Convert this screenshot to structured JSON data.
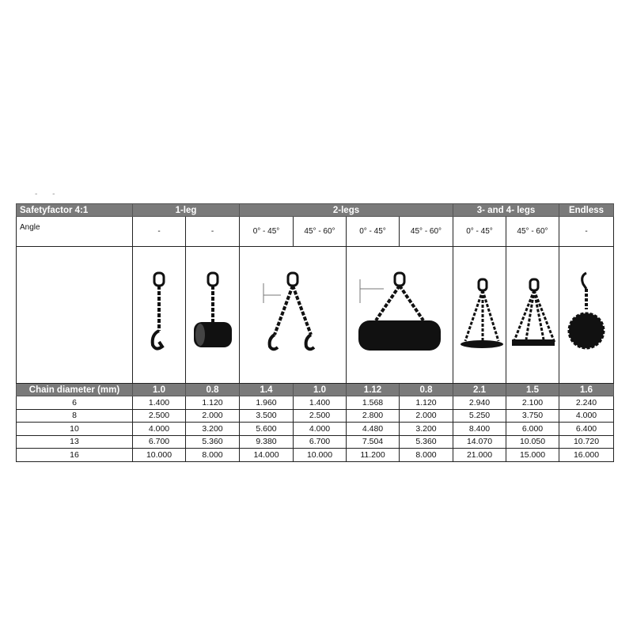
{
  "header": {
    "title": "Safetyfactor 4:1",
    "groups": [
      "1-leg",
      "2-legs",
      "3- and 4- legs",
      "Endless"
    ]
  },
  "angle": {
    "label": "Angle",
    "values": [
      "-",
      "-",
      "0° - 45°",
      "45° - 60°",
      "0° - 45°",
      "45° - 60°",
      "0° - 45°",
      "45° - 60°",
      "-"
    ]
  },
  "illustrations": [
    "single-leg-chain-hook",
    "single-leg-choke-on-pipe",
    "two-leg-chain-hooks",
    "two-leg-chain-on-pipe",
    "three-leg-chain-on-plate",
    "four-leg-chain-on-plate",
    "endless-chain-loop"
  ],
  "chain_diameter": {
    "label": "Chain diameter (mm)",
    "factors": [
      "1.0",
      "0.8",
      "1.4",
      "1.0",
      "1.12",
      "0.8",
      "2.1",
      "1.5",
      "1.6"
    ]
  },
  "rows": [
    {
      "d": "6",
      "v": [
        "1.400",
        "1.120",
        "1.960",
        "1.400",
        "1.568",
        "1.120",
        "2.940",
        "2.100",
        "2.240"
      ]
    },
    {
      "d": "8",
      "v": [
        "2.500",
        "2.000",
        "3.500",
        "2.500",
        "2.800",
        "2.000",
        "5.250",
        "3.750",
        "4.000"
      ]
    },
    {
      "d": "10",
      "v": [
        "4.000",
        "3.200",
        "5.600",
        "4.000",
        "4.480",
        "3.200",
        "8.400",
        "6.000",
        "6.400"
      ]
    },
    {
      "d": "13",
      "v": [
        "6.700",
        "5.360",
        "9.380",
        "6.700",
        "7.504",
        "5.360",
        "14.070",
        "10.050",
        "10.720"
      ]
    },
    {
      "d": "16",
      "v": [
        "10.000",
        "8.000",
        "14.000",
        "10.000",
        "11.200",
        "8.000",
        "21.000",
        "15.000",
        "16.000"
      ]
    }
  ],
  "decor": {
    "dashes": "- -"
  }
}
